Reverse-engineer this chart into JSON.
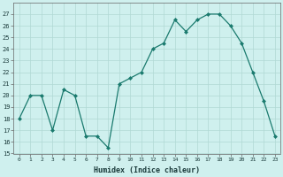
{
  "x": [
    0,
    1,
    2,
    3,
    4,
    5,
    6,
    7,
    8,
    9,
    10,
    11,
    12,
    13,
    14,
    15,
    16,
    17,
    18,
    19,
    20,
    21,
    22,
    23
  ],
  "y": [
    18,
    20,
    20,
    17,
    20.5,
    20,
    16.5,
    16.5,
    15.5,
    21,
    21.5,
    22,
    24,
    24.5,
    26.5,
    25.5,
    26.5,
    27,
    27,
    26,
    24.5,
    22,
    19.5,
    16.5
  ],
  "line_color": "#1a7a6e",
  "marker": "D",
  "marker_size": 2.0,
  "bg_color": "#cff0ee",
  "grid_color": "#b0d8d4",
  "xlabel": "Humidex (Indice chaleur)",
  "ylim": [
    15,
    28
  ],
  "xlim": [
    -0.5,
    23.5
  ],
  "yticks": [
    15,
    16,
    17,
    18,
    19,
    20,
    21,
    22,
    23,
    24,
    25,
    26,
    27
  ],
  "xticks": [
    0,
    1,
    2,
    3,
    4,
    5,
    6,
    7,
    8,
    9,
    10,
    11,
    12,
    13,
    14,
    15,
    16,
    17,
    18,
    19,
    20,
    21,
    22,
    23
  ],
  "xtick_labels": [
    "0",
    "1",
    "2",
    "3",
    "4",
    "5",
    "6",
    "7",
    "8",
    "9",
    "10",
    "11",
    "12",
    "13",
    "14",
    "15",
    "16",
    "17",
    "18",
    "19",
    "20",
    "21",
    "22",
    "23"
  ]
}
